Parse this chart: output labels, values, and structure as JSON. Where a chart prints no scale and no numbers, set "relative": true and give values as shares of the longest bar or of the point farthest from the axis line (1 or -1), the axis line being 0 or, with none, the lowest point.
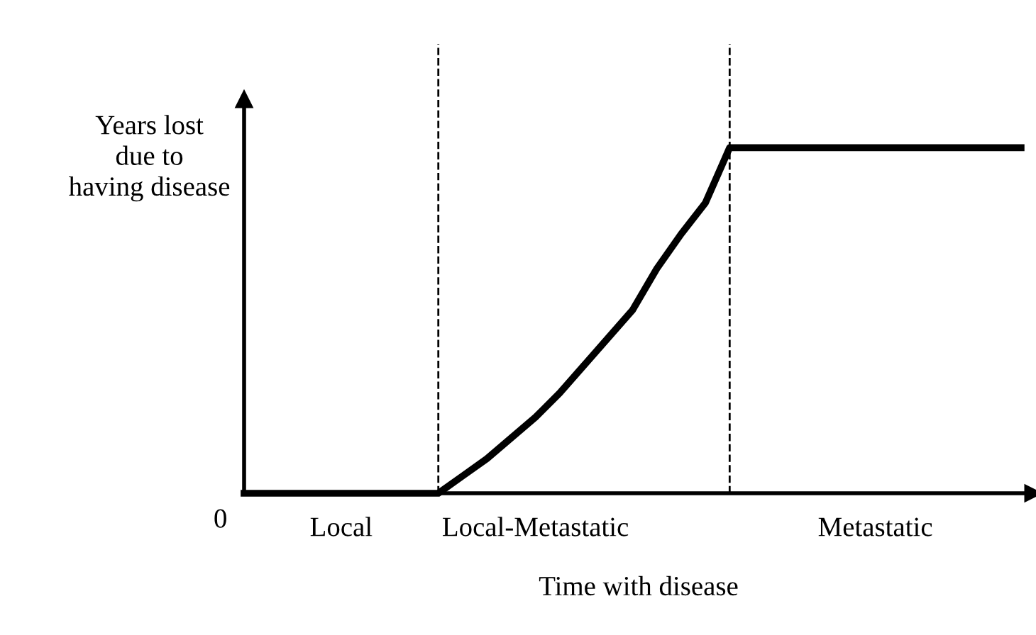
{
  "chart_data": {
    "type": "line",
    "relative": true,
    "xlabel": "Time with disease",
    "ylabel": "Years lost\ndue to\nhaving disease",
    "annotations": [
      "0"
    ],
    "categories": [
      null,
      null,
      null,
      null,
      "Local",
      null,
      null,
      null,
      null,
      null,
      null,
      null,
      "Local-Metastatic",
      null,
      null,
      null,
      null,
      null,
      null,
      null,
      null,
      null,
      null,
      null,
      null,
      null,
      "Metastatic",
      null,
      null,
      null,
      null,
      null,
      null
    ],
    "series": [
      {
        "color": "#000000",
        "values": [
          0,
          0,
          0,
          0,
          0,
          0,
          0,
          0,
          0,
          0.05,
          0.1,
          0.16,
          0.22,
          0.29,
          0.37,
          0.45,
          0.53,
          0.65,
          0.75,
          0.84,
          1,
          1,
          1,
          1,
          1,
          1,
          1,
          1,
          1,
          1,
          1,
          1,
          1
        ]
      }
    ]
  }
}
